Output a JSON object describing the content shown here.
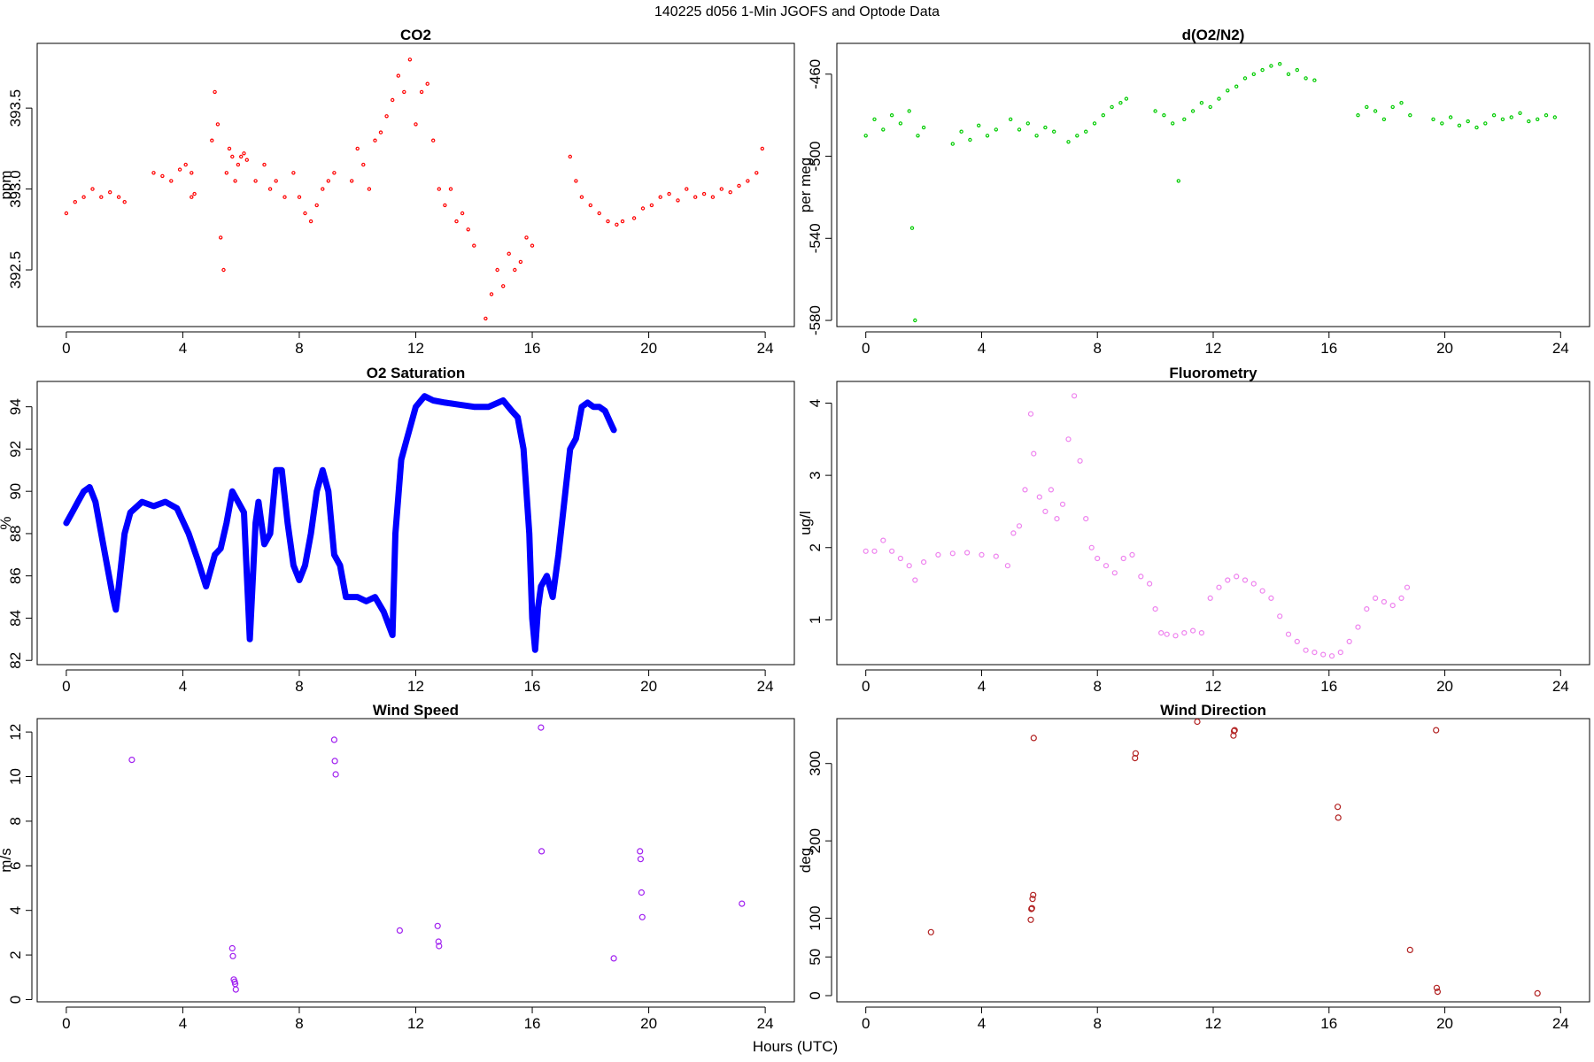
{
  "figure": {
    "main_title": "140225   d056   1-Min  JGOFS and Optode Data",
    "xlabel": "Hours (UTC)"
  },
  "chart_data": [
    {
      "id": "co2",
      "type": "scatter",
      "title": "CO2",
      "xlabel": "",
      "ylabel": "ppm",
      "xlim": [
        -1,
        25
      ],
      "ylim": [
        392.15,
        393.9
      ],
      "xticks": [
        "0",
        "4",
        "8",
        "12",
        "16",
        "20",
        "24"
      ],
      "yticks": [
        "392.5",
        "393.0",
        "393.5"
      ],
      "ytick_values": [
        392.5,
        393.0,
        393.5
      ],
      "color": "#ff0000",
      "marker_radius": 1.6,
      "series": [
        {
          "x": [
            0.0,
            0.3,
            0.6,
            0.9,
            1.2,
            1.5,
            1.8,
            2.0
          ],
          "y": [
            392.85,
            392.92,
            392.95,
            393.0,
            392.95,
            392.98,
            392.95,
            392.92
          ]
        },
        {
          "x": [
            3.0,
            3.3,
            3.6,
            3.9,
            4.1,
            4.3
          ],
          "y": [
            393.1,
            393.08,
            393.05,
            393.12,
            393.15,
            393.1
          ]
        },
        {
          "x": [
            4.3,
            4.4
          ],
          "y": [
            392.95,
            392.97
          ]
        },
        {
          "x": [
            5.0,
            5.1,
            5.2,
            5.3,
            5.4,
            5.5,
            5.6,
            5.7,
            5.8,
            5.9,
            6.0,
            6.1,
            6.2
          ],
          "y": [
            393.3,
            393.6,
            393.4,
            392.7,
            392.5,
            393.1,
            393.25,
            393.2,
            393.05,
            393.15,
            393.2,
            393.22,
            393.18
          ]
        },
        {
          "x": [
            6.5,
            6.8,
            7.0,
            7.2,
            7.5,
            7.8,
            8.0,
            8.2,
            8.4,
            8.6,
            8.8,
            9.0,
            9.2
          ],
          "y": [
            393.05,
            393.15,
            393.0,
            393.05,
            392.95,
            393.1,
            392.95,
            392.85,
            392.8,
            392.9,
            393.0,
            393.05,
            393.1
          ]
        },
        {
          "x": [
            9.8,
            10.0,
            10.2,
            10.4,
            10.6,
            10.8,
            11.0,
            11.2,
            11.4,
            11.6,
            11.8,
            12.0,
            12.2,
            12.4,
            12.6,
            12.8,
            13.0,
            13.2,
            13.4,
            13.6,
            13.8,
            14.0
          ],
          "y": [
            393.05,
            393.25,
            393.15,
            393.0,
            393.3,
            393.35,
            393.45,
            393.55,
            393.7,
            393.6,
            393.8,
            393.4,
            393.6,
            393.65,
            393.3,
            393.0,
            392.9,
            393.0,
            392.8,
            392.85,
            392.75,
            392.65
          ]
        },
        {
          "x": [
            14.4,
            14.6,
            14.8,
            15.0,
            15.2,
            15.4,
            15.6,
            15.8,
            16.0
          ],
          "y": [
            392.2,
            392.35,
            392.5,
            392.4,
            392.6,
            392.5,
            392.55,
            392.7,
            392.65
          ]
        },
        {
          "x": [
            17.3,
            17.5,
            17.7,
            18.0,
            18.3,
            18.6,
            18.9,
            19.1
          ],
          "y": [
            393.2,
            393.05,
            392.95,
            392.9,
            392.85,
            392.8,
            392.78,
            392.8
          ]
        },
        {
          "x": [
            19.5,
            19.8,
            20.1,
            20.4,
            20.7,
            21.0,
            21.3,
            21.6,
            21.9,
            22.2,
            22.5,
            22.8,
            23.1,
            23.4,
            23.7,
            23.9
          ],
          "y": [
            392.82,
            392.88,
            392.9,
            392.95,
            392.97,
            392.93,
            393.0,
            392.95,
            392.97,
            392.95,
            393.0,
            392.98,
            393.02,
            393.05,
            393.1,
            393.25
          ]
        }
      ]
    },
    {
      "id": "o2n2",
      "type": "scatter",
      "title": "d(O2/N2)",
      "xlabel": "",
      "ylabel": "per meg",
      "xlim": [
        -1,
        25
      ],
      "ylim": [
        -583,
        -445
      ],
      "xticks": [
        "0",
        "4",
        "8",
        "12",
        "16",
        "20",
        "24"
      ],
      "yticks": [
        "-580",
        "-540",
        "-500",
        "-460"
      ],
      "ytick_values": [
        -580,
        -540,
        -500,
        -460
      ],
      "color": "#00cc00",
      "marker_radius": 1.6,
      "series": [
        {
          "x": [
            0.0,
            0.3,
            0.6,
            0.9,
            1.2,
            1.5,
            1.8,
            2.0
          ],
          "y": [
            -490,
            -482,
            -487,
            -480,
            -484,
            -478,
            -490,
            -486
          ]
        },
        {
          "x": [
            1.6,
            1.7
          ],
          "y": [
            -535,
            -580
          ]
        },
        {
          "x": [
            3.0,
            3.3,
            3.6,
            3.9,
            4.2,
            4.5
          ],
          "y": [
            -494,
            -488,
            -492,
            -485,
            -490,
            -487
          ]
        },
        {
          "x": [
            5.0,
            5.3,
            5.6,
            5.9,
            6.2,
            6.5
          ],
          "y": [
            -482,
            -487,
            -484,
            -490,
            -486,
            -488
          ]
        },
        {
          "x": [
            7.0,
            7.3,
            7.6,
            7.9,
            8.2,
            8.5,
            8.8,
            9.0
          ],
          "y": [
            -493,
            -490,
            -488,
            -484,
            -480,
            -476,
            -474,
            -472
          ]
        },
        {
          "x": [
            10.0,
            10.3,
            10.6,
            10.8,
            11.0,
            11.3,
            11.6,
            11.9,
            12.2,
            12.5,
            12.8,
            13.1,
            13.4,
            13.7,
            14.0,
            14.3,
            14.6,
            14.9,
            15.2,
            15.5
          ],
          "y": [
            -478,
            -480,
            -484,
            -512,
            -482,
            -478,
            -474,
            -476,
            -472,
            -468,
            -466,
            -462,
            -460,
            -458,
            -456,
            -455,
            -460,
            -458,
            -462,
            -463
          ]
        },
        {
          "x": [
            17.0,
            17.3,
            17.6,
            17.9,
            18.2,
            18.5,
            18.8
          ],
          "y": [
            -480,
            -476,
            -478,
            -482,
            -476,
            -474,
            -480
          ]
        },
        {
          "x": [
            19.6,
            19.9,
            20.2,
            20.5,
            20.8,
            21.1,
            21.4,
            21.7,
            22.0,
            22.3,
            22.6,
            22.9,
            23.2,
            23.5,
            23.8
          ],
          "y": [
            -482,
            -484,
            -481,
            -485,
            -483,
            -486,
            -484,
            -480,
            -482,
            -481,
            -479,
            -483,
            -482,
            -480,
            -481
          ]
        }
      ]
    },
    {
      "id": "o2sat",
      "type": "line",
      "title": "O2 Saturation",
      "xlabel": "",
      "ylabel": "%",
      "xlim": [
        -1,
        25
      ],
      "ylim": [
        81.8,
        95.2
      ],
      "xticks": [
        "0",
        "4",
        "8",
        "12",
        "16",
        "20",
        "24"
      ],
      "yticks": [
        "82",
        "84",
        "86",
        "88",
        "90",
        "92",
        "94"
      ],
      "ytick_values": [
        82,
        84,
        86,
        88,
        90,
        92,
        94
      ],
      "color": "#0000ff",
      "line_width": 7,
      "series": [
        {
          "x": [
            0.0,
            0.2,
            0.4,
            0.6,
            0.8,
            1.0,
            1.2,
            1.4,
            1.6,
            1.7,
            1.8,
            2.0,
            2.2,
            2.6,
            3.0,
            3.4,
            3.8,
            4.2,
            4.5,
            4.8,
            5.0,
            5.1,
            5.3,
            5.5,
            5.7,
            5.9,
            6.1,
            6.2,
            6.3,
            6.5,
            6.6,
            6.8,
            7.0,
            7.2,
            7.4,
            7.6,
            7.8,
            8.0,
            8.2,
            8.4,
            8.6,
            8.8,
            9.0,
            9.2,
            9.4,
            9.6,
            9.8,
            10.0,
            10.3,
            10.6,
            10.9,
            11.2,
            11.3,
            11.5,
            11.7,
            12.0,
            12.3,
            12.6,
            13.0,
            13.5,
            14.0,
            14.5,
            15.0,
            15.3,
            15.5,
            15.7,
            15.9,
            16.0,
            16.1,
            16.2,
            16.3,
            16.5,
            16.7,
            16.9,
            17.1,
            17.3,
            17.5,
            17.7,
            17.9,
            18.1,
            18.3,
            18.5,
            18.7,
            18.8
          ],
          "y": [
            88.5,
            89.0,
            89.5,
            90.0,
            90.2,
            89.5,
            88.0,
            86.5,
            85.0,
            84.4,
            85.5,
            88.0,
            89.0,
            89.5,
            89.3,
            89.5,
            89.2,
            88.0,
            86.8,
            85.5,
            86.5,
            87.0,
            87.3,
            88.5,
            90.0,
            89.5,
            89.0,
            86.0,
            83.0,
            88.5,
            89.5,
            87.5,
            88.0,
            91.0,
            91.0,
            88.5,
            86.5,
            85.8,
            86.5,
            88.0,
            90.0,
            91.0,
            90.0,
            87.0,
            86.5,
            85.0,
            85.0,
            85.0,
            84.8,
            85.0,
            84.3,
            83.2,
            88.0,
            91.5,
            92.5,
            94.0,
            94.5,
            94.3,
            94.2,
            94.1,
            94.0,
            94.0,
            94.3,
            93.8,
            93.5,
            92.0,
            88.0,
            84.0,
            82.5,
            84.5,
            85.5,
            86.0,
            85.0,
            87.0,
            89.5,
            92.0,
            92.5,
            94.0,
            94.2,
            94.0,
            94.0,
            93.8,
            93.2,
            92.9
          ]
        }
      ]
    },
    {
      "id": "fluor",
      "type": "scatter",
      "title": "Fluorometry",
      "xlabel": "",
      "ylabel": "ug/l",
      "xlim": [
        -1,
        25
      ],
      "ylim": [
        0.38,
        4.3
      ],
      "xticks": [
        "0",
        "4",
        "8",
        "12",
        "16",
        "20",
        "24"
      ],
      "yticks": [
        "1",
        "2",
        "3",
        "4"
      ],
      "ytick_values": [
        1,
        2,
        3,
        4
      ],
      "color": "#ee82ee",
      "marker_radius": 2.5,
      "series": [
        {
          "x": [
            0.0,
            0.3,
            0.6,
            0.9,
            1.2,
            1.5,
            1.7,
            2.0,
            2.5,
            3.0,
            3.5,
            4.0,
            4.5,
            4.9,
            5.1,
            5.3,
            5.5,
            5.7,
            5.8,
            6.0,
            6.2,
            6.4,
            6.6,
            6.8,
            7.0,
            7.2,
            7.4,
            7.6,
            7.8,
            8.0,
            8.3,
            8.6,
            8.9,
            9.2,
            9.5,
            9.8,
            10.0,
            10.2,
            10.4,
            10.7,
            11.0,
            11.3,
            11.6,
            11.9,
            12.2,
            12.5,
            12.8,
            13.1,
            13.4,
            13.7,
            14.0,
            14.3,
            14.6,
            14.9,
            15.2,
            15.5,
            15.8,
            16.1,
            16.4,
            16.7,
            17.0,
            17.3,
            17.6,
            17.9,
            18.2,
            18.5,
            18.7
          ],
          "y": [
            1.95,
            1.95,
            2.1,
            1.95,
            1.85,
            1.75,
            1.55,
            1.8,
            1.9,
            1.92,
            1.93,
            1.9,
            1.88,
            1.75,
            2.2,
            2.3,
            2.8,
            3.85,
            3.3,
            2.7,
            2.5,
            2.8,
            2.4,
            2.6,
            3.5,
            4.1,
            3.2,
            2.4,
            2.0,
            1.85,
            1.75,
            1.65,
            1.85,
            1.9,
            1.6,
            1.5,
            1.15,
            0.82,
            0.8,
            0.78,
            0.82,
            0.85,
            0.82,
            1.3,
            1.45,
            1.55,
            1.6,
            1.55,
            1.5,
            1.4,
            1.3,
            1.05,
            0.8,
            0.7,
            0.58,
            0.55,
            0.52,
            0.5,
            0.55,
            0.7,
            0.9,
            1.15,
            1.3,
            1.25,
            1.2,
            1.3,
            1.45
          ]
        }
      ]
    },
    {
      "id": "windspeed",
      "type": "scatter",
      "title": "Wind Speed",
      "xlabel": "",
      "ylabel": "m/s",
      "xlim": [
        -1,
        25
      ],
      "ylim": [
        -0.1,
        12.6
      ],
      "xticks": [
        "0",
        "4",
        "8",
        "12",
        "16",
        "20",
        "24"
      ],
      "yticks": [
        "0",
        "2",
        "4",
        "6",
        "8",
        "10",
        "12"
      ],
      "ytick_values": [
        0,
        2,
        4,
        6,
        8,
        10,
        12
      ],
      "color": "#a020f0",
      "marker_radius": 3,
      "series": [
        {
          "x": [
            2.25,
            5.7,
            5.72,
            5.75,
            5.78,
            5.8,
            5.82,
            9.2,
            9.22,
            9.25,
            11.45,
            12.75,
            12.78,
            12.8,
            16.3,
            16.32,
            18.8,
            19.7,
            19.72,
            19.75,
            19.78,
            23.2
          ],
          "y": [
            10.75,
            2.3,
            1.95,
            0.9,
            0.8,
            0.7,
            0.45,
            11.65,
            10.7,
            10.1,
            3.1,
            3.3,
            2.6,
            2.4,
            12.2,
            6.65,
            1.85,
            6.65,
            6.3,
            4.8,
            3.7,
            4.3
          ]
        }
      ]
    },
    {
      "id": "winddir",
      "type": "scatter",
      "title": "Wind Direction",
      "xlabel": "",
      "ylabel": "deg",
      "xlim": [
        -1,
        25
      ],
      "ylim": [
        -8,
        358
      ],
      "xticks": [
        "0",
        "4",
        "8",
        "12",
        "16",
        "20",
        "24"
      ],
      "yticks": [
        "0",
        "50",
        "100",
        "200",
        "300"
      ],
      "ytick_values": [
        0,
        50,
        100,
        200,
        300
      ],
      "color": "#b22222",
      "marker_radius": 3,
      "series": [
        {
          "x": [
            2.25,
            5.7,
            5.72,
            5.74,
            5.76,
            5.78,
            5.8,
            9.3,
            9.32,
            11.45,
            12.7,
            12.72,
            12.74,
            16.3,
            16.32,
            18.8,
            19.7,
            19.72,
            19.75,
            23.2
          ],
          "y": [
            82,
            98,
            112,
            113,
            125,
            130,
            333,
            307,
            313,
            354,
            336,
            342,
            343,
            244,
            230,
            59,
            343,
            10,
            5,
            3
          ]
        }
      ]
    }
  ]
}
